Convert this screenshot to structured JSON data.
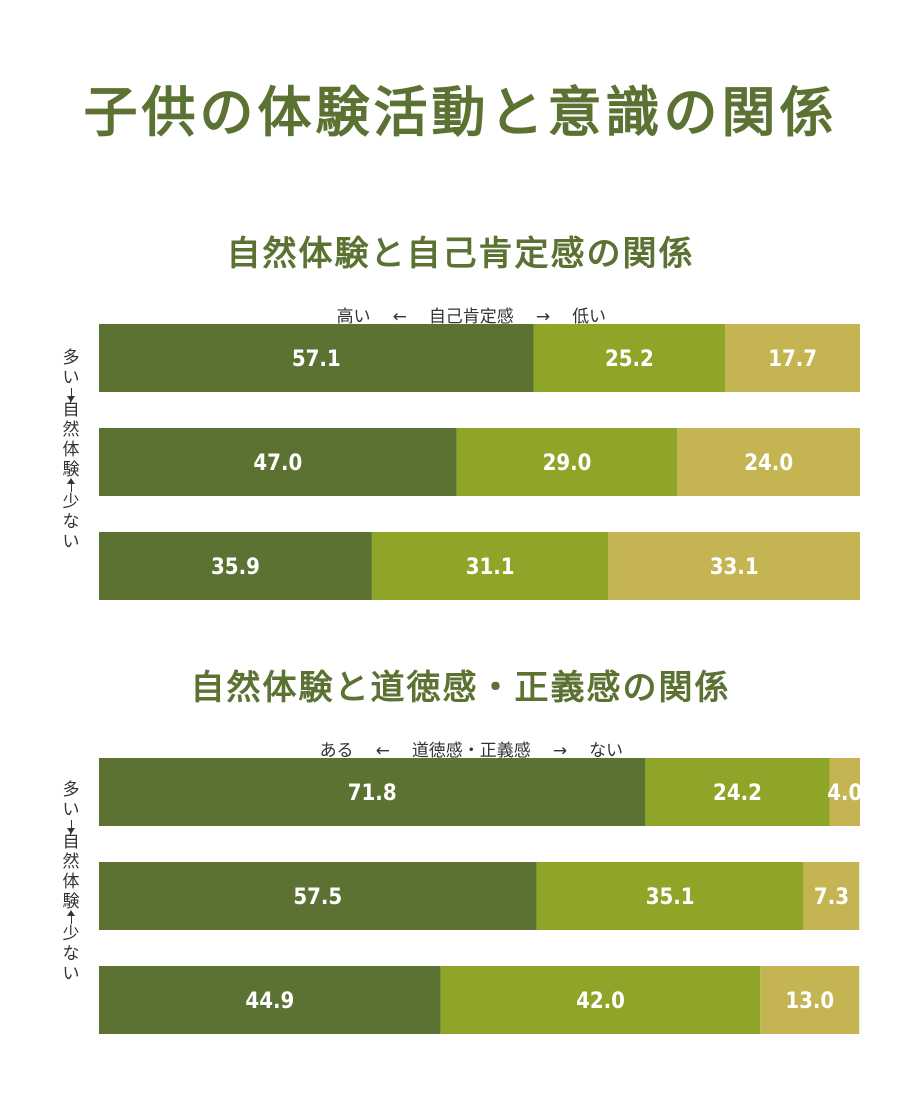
{
  "title": "子供の体験活動と意識の関係",
  "colors": {
    "title": "#5b7232",
    "seg1": "#5b7232",
    "seg2": "#8fa528",
    "seg3": "#c5b452"
  },
  "chart_data": [
    {
      "type": "bar",
      "orientation": "horizontal",
      "stacked": true,
      "title": "自然体験と自己肯定感の関係",
      "scale": {
        "left": "高い",
        "left_arrow": "←",
        "center": "自己肯定感",
        "right_arrow": "→",
        "right": "低い"
      },
      "ylabel": [
        "多",
        "い",
        "自",
        "然",
        "体",
        "験",
        "少",
        "な",
        "い"
      ],
      "xlim": [
        0,
        100
      ],
      "rows": [
        {
          "values": [
            57.1,
            25.2,
            17.7
          ],
          "labels": [
            "57.1",
            "25.2",
            "17.7"
          ]
        },
        {
          "values": [
            47.0,
            29.0,
            24.0
          ],
          "labels": [
            "47.0",
            "29.0",
            "24.0"
          ]
        },
        {
          "values": [
            35.9,
            31.1,
            33.1
          ],
          "labels": [
            "35.9",
            "31.1",
            "33.1"
          ]
        }
      ]
    },
    {
      "type": "bar",
      "orientation": "horizontal",
      "stacked": true,
      "title": "自然体験と道徳感・正義感の関係",
      "scale": {
        "left": "ある",
        "left_arrow": "←",
        "center": "道徳感・正義感",
        "right_arrow": "→",
        "right": "ない"
      },
      "ylabel": [
        "多",
        "い",
        "自",
        "然",
        "体",
        "験",
        "少",
        "な",
        "い"
      ],
      "xlim": [
        0,
        100
      ],
      "rows": [
        {
          "values": [
            71.8,
            24.2,
            4.0
          ],
          "labels": [
            "71.8",
            "24.2",
            "4.0"
          ]
        },
        {
          "values": [
            57.5,
            35.1,
            7.3
          ],
          "labels": [
            "57.5",
            "35.1",
            "7.3"
          ]
        },
        {
          "values": [
            44.9,
            42.0,
            13.0
          ],
          "labels": [
            "44.9",
            "42.0",
            "13.0"
          ]
        }
      ]
    }
  ]
}
